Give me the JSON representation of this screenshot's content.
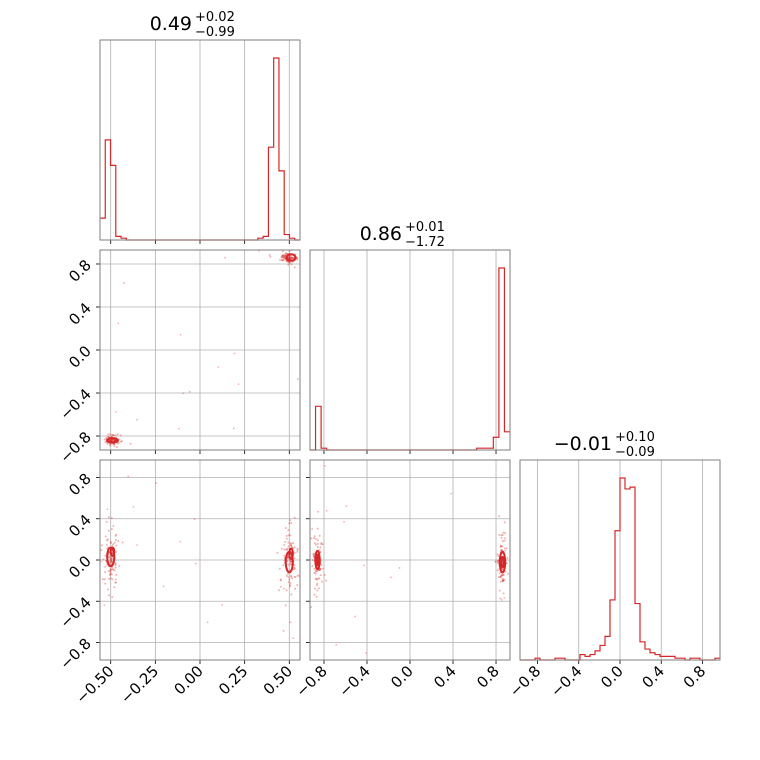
{
  "chart_data": {
    "type": "corner",
    "color": "#d62728",
    "params": [
      {
        "title": {
          "median": "0.49",
          "plus": "+0.02",
          "minus": "−0.99"
        },
        "range": [
          -0.56,
          0.56
        ],
        "ticks": [
          -0.5,
          -0.25,
          0.0,
          0.25,
          0.5
        ],
        "ticklabels": [
          "−0.50",
          "−0.25",
          "0.00",
          "0.25",
          "0.50"
        ]
      },
      {
        "title": {
          "median": "0.86",
          "plus": "+0.01",
          "minus": "−1.72"
        },
        "range": [
          -0.93,
          0.93
        ],
        "ticks": [
          -0.8,
          -0.4,
          0.0,
          0.4,
          0.8
        ],
        "ticklabels": [
          "−0.8",
          "−0.4",
          "0.0",
          "0.4",
          "0.8"
        ]
      },
      {
        "title": {
          "median": "−0.01",
          "plus": "+0.10",
          "minus": "−0.09"
        },
        "range": [
          -0.97,
          0.97
        ],
        "ticks": [
          -0.8,
          -0.4,
          0.0,
          0.4,
          0.8
        ],
        "ticklabels": [
          "−0.8",
          "−0.4",
          "0.0",
          "0.4",
          "0.8"
        ]
      }
    ],
    "histograms": [
      {
        "counts": [
          0.12,
          0.55,
          0.41,
          0.02,
          0.01,
          0,
          0,
          0,
          0,
          0,
          0,
          0,
          0,
          0,
          0,
          0,
          0,
          0,
          0,
          0,
          0,
          0,
          0,
          0,
          0,
          0,
          0,
          0,
          0,
          0,
          0.01,
          0.02,
          0.51,
          1.0,
          0.38,
          0.03,
          0.01,
          0
        ]
      },
      {
        "counts": [
          0,
          0.24,
          0.01,
          0,
          0,
          0,
          0,
          0,
          0,
          0,
          0,
          0,
          0,
          0,
          0,
          0,
          0,
          0,
          0,
          0,
          0,
          0,
          0,
          0,
          0,
          0,
          0,
          0,
          0,
          0,
          0.01,
          0.01,
          0.01,
          0.07,
          1.0,
          0.1
        ]
      },
      {
        "counts": [
          0,
          0,
          0,
          0.01,
          0,
          0,
          0,
          0.01,
          0.01,
          0,
          0,
          0,
          0.03,
          0.02,
          0.03,
          0.05,
          0.08,
          0.13,
          0.33,
          0.71,
          1.0,
          0.94,
          0.95,
          0.31,
          0.1,
          0.06,
          0.04,
          0.03,
          0.02,
          0.02,
          0.02,
          0.01,
          0.01,
          0,
          0.01,
          0.01,
          0,
          0,
          0,
          0.01
        ]
      }
    ],
    "pairs": [
      {
        "x": 0,
        "y": 1,
        "clusters": [
          {
            "cx": -0.49,
            "cy": -0.84,
            "sx": 0.02,
            "sy": 0.02
          },
          {
            "cx": 0.5,
            "cy": 0.86,
            "sx": 0.02,
            "sy": 0.02
          }
        ],
        "contours": [
          [
            {
              "x": -0.49,
              "y": -0.84,
              "rx": 0.03,
              "ry": 0.02
            }
          ],
          [
            {
              "x": 0.51,
              "y": 0.86,
              "rx": 0.025,
              "ry": 0.03
            }
          ]
        ]
      },
      {
        "x": 0,
        "y": 2,
        "clusters": [
          {
            "cx": -0.5,
            "cy": 0.0,
            "sx": 0.02,
            "sy": 0.12
          },
          {
            "cx": 0.5,
            "cy": 0.0,
            "sx": 0.02,
            "sy": 0.14
          }
        ],
        "contours": [
          [
            {
              "x": -0.5,
              "y": 0.03,
              "rx": 0.02,
              "ry": 0.09
            },
            {
              "x": -0.49,
              "y": 0.08,
              "rx": 0.01,
              "ry": 0.04
            }
          ],
          [
            {
              "x": 0.5,
              "y": -0.02,
              "rx": 0.02,
              "ry": 0.1
            },
            {
              "x": 0.51,
              "y": 0.06,
              "rx": 0.01,
              "ry": 0.05
            }
          ]
        ]
      },
      {
        "x": 1,
        "y": 2,
        "clusters": [
          {
            "cx": -0.86,
            "cy": 0.0,
            "sx": 0.02,
            "sy": 0.1
          },
          {
            "cx": 0.86,
            "cy": -0.02,
            "sx": 0.02,
            "sy": 0.11
          }
        ],
        "contours": [
          [
            {
              "x": -0.86,
              "y": 0.0,
              "rx": 0.02,
              "ry": 0.09
            },
            {
              "x": -0.86,
              "y": 0.0,
              "rx": 0.01,
              "ry": 0.05
            }
          ],
          [
            {
              "x": 0.86,
              "y": -0.02,
              "rx": 0.025,
              "ry": 0.1
            },
            {
              "x": 0.86,
              "y": -0.02,
              "rx": 0.012,
              "ry": 0.05
            }
          ]
        ]
      }
    ],
    "grid": true
  }
}
